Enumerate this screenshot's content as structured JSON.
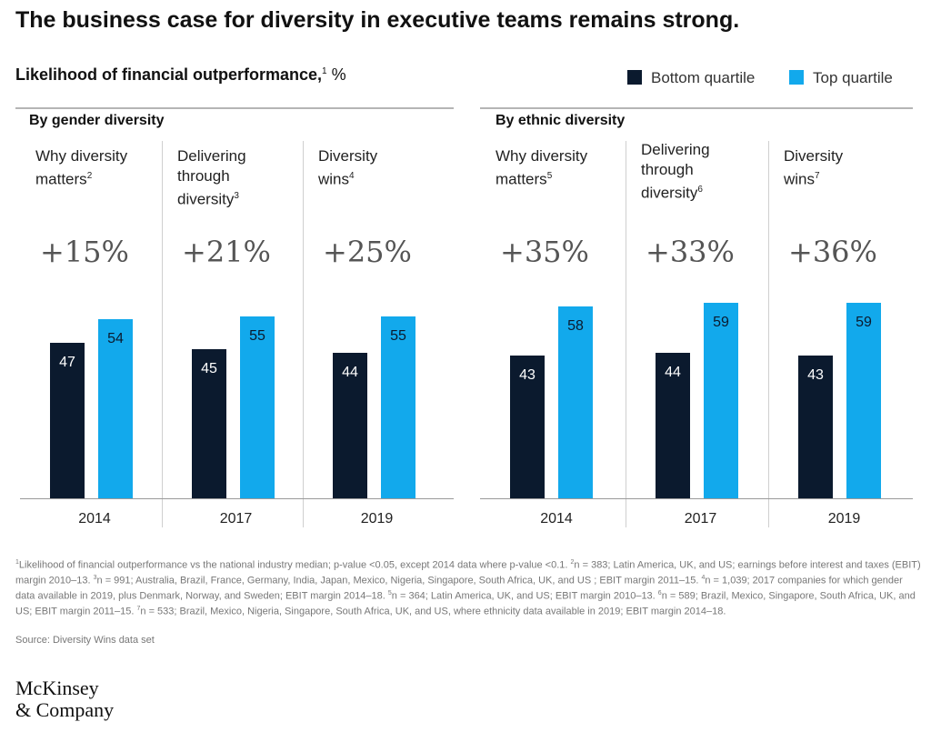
{
  "title": "The business case for diversity in executive teams remains strong.",
  "subtitle": "Likelihood of financial outperformance,",
  "subtitle_sup": "1",
  "subtitle_unit": "%",
  "legend": {
    "bottom": {
      "label": "Bottom quartile",
      "color": "#0b1a2e"
    },
    "top": {
      "label": "Top quartile",
      "color": "#12a9ec"
    }
  },
  "groups": [
    {
      "title": "By gender diversity"
    },
    {
      "title": "By ethnic diversity"
    }
  ],
  "chart_data": {
    "type": "bar",
    "title": "Likelihood of financial outperformance, %",
    "series": [
      {
        "name": "Bottom quartile",
        "values": [
          47,
          45,
          44,
          43,
          44,
          43
        ]
      },
      {
        "name": "Top quartile",
        "values": [
          54,
          55,
          55,
          58,
          59,
          59
        ]
      }
    ],
    "panels": [
      {
        "group": "By gender diversity",
        "label": "Why diversity matters",
        "sup": "2",
        "uplift": "+15%",
        "year": "2014",
        "bottom": 47,
        "top": 54
      },
      {
        "group": "By gender diversity",
        "label": "Delivering through diversity",
        "sup": "3",
        "uplift": "+21%",
        "year": "2017",
        "bottom": 45,
        "top": 55
      },
      {
        "group": "By gender diversity",
        "label": "Diversity wins",
        "sup": "4",
        "uplift": "+25%",
        "year": "2019",
        "bottom": 44,
        "top": 55
      },
      {
        "group": "By ethnic diversity",
        "label": "Why diversity matters",
        "sup": "5",
        "uplift": "+35%",
        "year": "2014",
        "bottom": 43,
        "top": 58
      },
      {
        "group": "By ethnic diversity",
        "label": "Delivering through diversity",
        "sup": "6",
        "uplift": "+33%",
        "year": "2017",
        "bottom": 44,
        "top": 59
      },
      {
        "group": "By ethnic diversity",
        "label": "Diversity wins",
        "sup": "7",
        "uplift": "+36%",
        "year": "2019",
        "bottom": 43,
        "top": 59
      }
    ],
    "legend_position": "top-right",
    "grid": false
  },
  "footnotes": [
    {
      "sup": "1",
      "text": "Likelihood of financial outperformance vs the national industry median; p-value <0.05, except 2014 data where p-value <0.1."
    },
    {
      "sup": "2",
      "text": "n = 383; Latin America, UK, and US; earnings before interest and taxes (EBIT) margin 2010–13."
    },
    {
      "sup": "3",
      "text": "n = 991; Australia, Brazil, France, Germany, India, Japan, Mexico, Nigeria, Singapore, South Africa, UK, and US ; EBIT margin 2011–15."
    },
    {
      "sup": "4",
      "text": "n = 1,039; 2017 companies for which gender data available in 2019, plus Denmark, Norway, and Sweden;  EBIT margin 2014–18."
    },
    {
      "sup": "5",
      "text": "n = 364; Latin America, UK, and US; EBIT margin 2010–13."
    },
    {
      "sup": "6",
      "text": "n = 589; Brazil, Mexico, Singapore, South Africa, UK, and US; EBIT margin 2011–15."
    },
    {
      "sup": "7",
      "text": "n = 533; Brazil, Mexico, Nigeria, Singapore, South Africa, UK, and US, where ethnicity data available in 2019; EBIT margin 2014–18."
    }
  ],
  "source": "Source: Diversity Wins data set",
  "logo": {
    "line1": "McKinsey",
    "line2": "& Company"
  }
}
